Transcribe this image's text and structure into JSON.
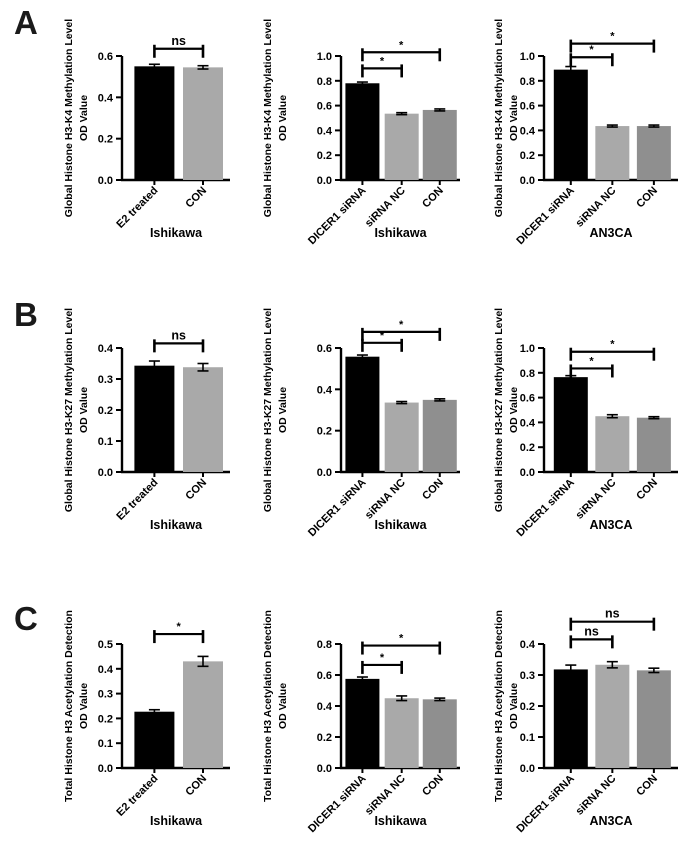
{
  "figure": {
    "panels": [
      {
        "label": "A"
      },
      {
        "label": "B"
      },
      {
        "label": "C"
      }
    ]
  },
  "colors": {
    "bar_black": "#000000",
    "bar_light_gray": "#a9a9a9",
    "bar_mid_gray": "#8f8f8f",
    "axis": "#000000",
    "background": "#ffffff"
  },
  "chart_data": [
    {
      "cell": "a1",
      "panel": "A",
      "type": "bar",
      "ylabel": "Global Histone H3-K4 Methylation Level",
      "ylabel2": "OD Value",
      "xlabel": "Ishikawa",
      "categories": [
        "E2 treated",
        "CON"
      ],
      "values": [
        0.55,
        0.545
      ],
      "errors": [
        0.01,
        0.008
      ],
      "bar_colors": [
        "#000000",
        "#a9a9a9"
      ],
      "ylim": [
        0,
        0.6
      ],
      "yticks": [
        0,
        0.2,
        0.4,
        0.6
      ],
      "significance": [
        {
          "from": 0,
          "to": 1,
          "label": "ns",
          "y": 0.635
        }
      ]
    },
    {
      "cell": "a2",
      "panel": "A",
      "type": "bar",
      "ylabel": "Global Histone H3-K4 Methylation Level",
      "ylabel2": "OD Value",
      "xlabel": "Ishikawa",
      "categories": [
        "DICER1 siRNA",
        "siRNA NC",
        "CON"
      ],
      "values": [
        0.78,
        0.535,
        0.565
      ],
      "errors": [
        0.01,
        0.008,
        0.008
      ],
      "bar_colors": [
        "#000000",
        "#a9a9a9",
        "#8f8f8f"
      ],
      "ylim": [
        0,
        1.0
      ],
      "yticks": [
        0,
        0.2,
        0.4,
        0.6,
        0.8,
        1.0
      ],
      "significance": [
        {
          "from": 0,
          "to": 1,
          "label": "*",
          "y": 0.9
        },
        {
          "from": 0,
          "to": 2,
          "label": "*",
          "y": 1.03
        }
      ]
    },
    {
      "cell": "a3",
      "panel": "A",
      "type": "bar",
      "ylabel": "Global Histone H3-K4 Methylation Level",
      "ylabel2": "OD Value",
      "xlabel": "AN3CA",
      "categories": [
        "DICER1 siRNA",
        "siRNA NC",
        "CON"
      ],
      "values": [
        0.89,
        0.435,
        0.435
      ],
      "errors": [
        0.025,
        0.008,
        0.008
      ],
      "bar_colors": [
        "#000000",
        "#a9a9a9",
        "#8f8f8f"
      ],
      "ylim": [
        0,
        1.0
      ],
      "yticks": [
        0,
        0.2,
        0.4,
        0.6,
        0.8,
        1.0
      ],
      "significance": [
        {
          "from": 0,
          "to": 1,
          "label": "*",
          "y": 0.99
        },
        {
          "from": 0,
          "to": 2,
          "label": "*",
          "y": 1.1
        }
      ]
    },
    {
      "cell": "b1",
      "panel": "B",
      "type": "bar",
      "ylabel": "Global Histone H3-K27 Methylation Level",
      "ylabel2": "OD Value",
      "xlabel": "Ishikawa",
      "categories": [
        "E2 treated",
        "CON"
      ],
      "values": [
        0.343,
        0.338
      ],
      "errors": [
        0.015,
        0.012
      ],
      "bar_colors": [
        "#000000",
        "#a9a9a9"
      ],
      "ylim": [
        0,
        0.4
      ],
      "yticks": [
        0,
        0.1,
        0.2,
        0.3,
        0.4
      ],
      "significance": [
        {
          "from": 0,
          "to": 1,
          "label": "ns",
          "y": 0.415
        }
      ]
    },
    {
      "cell": "b2",
      "panel": "B",
      "type": "bar",
      "ylabel": "Global Histone H3-K27 Methylation Level",
      "ylabel2": "OD Value",
      "xlabel": "Ishikawa",
      "categories": [
        "DICER1 siRNA",
        "siRNA NC",
        "CON"
      ],
      "values": [
        0.558,
        0.336,
        0.349
      ],
      "errors": [
        0.008,
        0.005,
        0.005
      ],
      "bar_colors": [
        "#000000",
        "#a9a9a9",
        "#8f8f8f"
      ],
      "ylim": [
        0,
        0.6
      ],
      "yticks": [
        0,
        0.2,
        0.4,
        0.6
      ],
      "significance": [
        {
          "from": 0,
          "to": 1,
          "label": "*",
          "y": 0.625
        },
        {
          "from": 0,
          "to": 2,
          "label": "*",
          "y": 0.678
        }
      ]
    },
    {
      "cell": "b3",
      "panel": "B",
      "type": "bar",
      "ylabel": "Global Histone H3-K27 Methylation Level",
      "ylabel2": "OD Value",
      "xlabel": "AN3CA",
      "categories": [
        "DICER1 siRNA",
        "siRNA NC",
        "CON"
      ],
      "values": [
        0.765,
        0.45,
        0.438
      ],
      "errors": [
        0.012,
        0.012,
        0.008
      ],
      "bar_colors": [
        "#000000",
        "#a9a9a9",
        "#8f8f8f"
      ],
      "ylim": [
        0,
        1.0
      ],
      "yticks": [
        0,
        0.2,
        0.4,
        0.6,
        0.8,
        1.0
      ],
      "significance": [
        {
          "from": 0,
          "to": 1,
          "label": "*",
          "y": 0.835
        },
        {
          "from": 0,
          "to": 2,
          "label": "*",
          "y": 0.97
        }
      ]
    },
    {
      "cell": "c1",
      "panel": "C",
      "type": "bar",
      "ylabel": "Total Histone H3 Acetylation Detection",
      "ylabel2": "OD Value",
      "xlabel": "Ishikawa",
      "categories": [
        "E2 treated",
        "CON"
      ],
      "values": [
        0.227,
        0.43
      ],
      "errors": [
        0.008,
        0.02
      ],
      "bar_colors": [
        "#000000",
        "#a9a9a9"
      ],
      "ylim": [
        0,
        0.5
      ],
      "yticks": [
        0,
        0.1,
        0.2,
        0.3,
        0.4,
        0.5
      ],
      "significance": [
        {
          "from": 0,
          "to": 1,
          "label": "*",
          "y": 0.54
        }
      ]
    },
    {
      "cell": "c2",
      "panel": "C",
      "type": "bar",
      "ylabel": "Total Histone H3 Acetylation Detection",
      "ylabel2": "OD Value",
      "xlabel": "Ishikawa",
      "categories": [
        "DICER1 siRNA",
        "siRNA NC",
        "CON"
      ],
      "values": [
        0.575,
        0.45,
        0.443
      ],
      "errors": [
        0.012,
        0.015,
        0.008
      ],
      "bar_colors": [
        "#000000",
        "#a9a9a9",
        "#8f8f8f"
      ],
      "ylim": [
        0,
        0.8
      ],
      "yticks": [
        0,
        0.2,
        0.4,
        0.6,
        0.8
      ],
      "significance": [
        {
          "from": 0,
          "to": 1,
          "label": "*",
          "y": 0.665
        },
        {
          "from": 0,
          "to": 2,
          "label": "*",
          "y": 0.79
        }
      ]
    },
    {
      "cell": "c3",
      "panel": "C",
      "type": "bar",
      "ylabel": "Total Histone H3 Acetylation Detection",
      "ylabel2": "OD Value",
      "xlabel": "AN3CA",
      "categories": [
        "DICER1 siRNA",
        "siRNA NC",
        "CON"
      ],
      "values": [
        0.318,
        0.333,
        0.315
      ],
      "errors": [
        0.014,
        0.01,
        0.007
      ],
      "bar_colors": [
        "#000000",
        "#a9a9a9",
        "#8f8f8f"
      ],
      "ylim": [
        0,
        0.4
      ],
      "yticks": [
        0,
        0.1,
        0.2,
        0.3,
        0.4
      ],
      "significance": [
        {
          "from": 0,
          "to": 1,
          "label": "ns",
          "y": 0.415
        },
        {
          "from": 0,
          "to": 2,
          "label": "ns",
          "y": 0.472
        }
      ]
    }
  ]
}
